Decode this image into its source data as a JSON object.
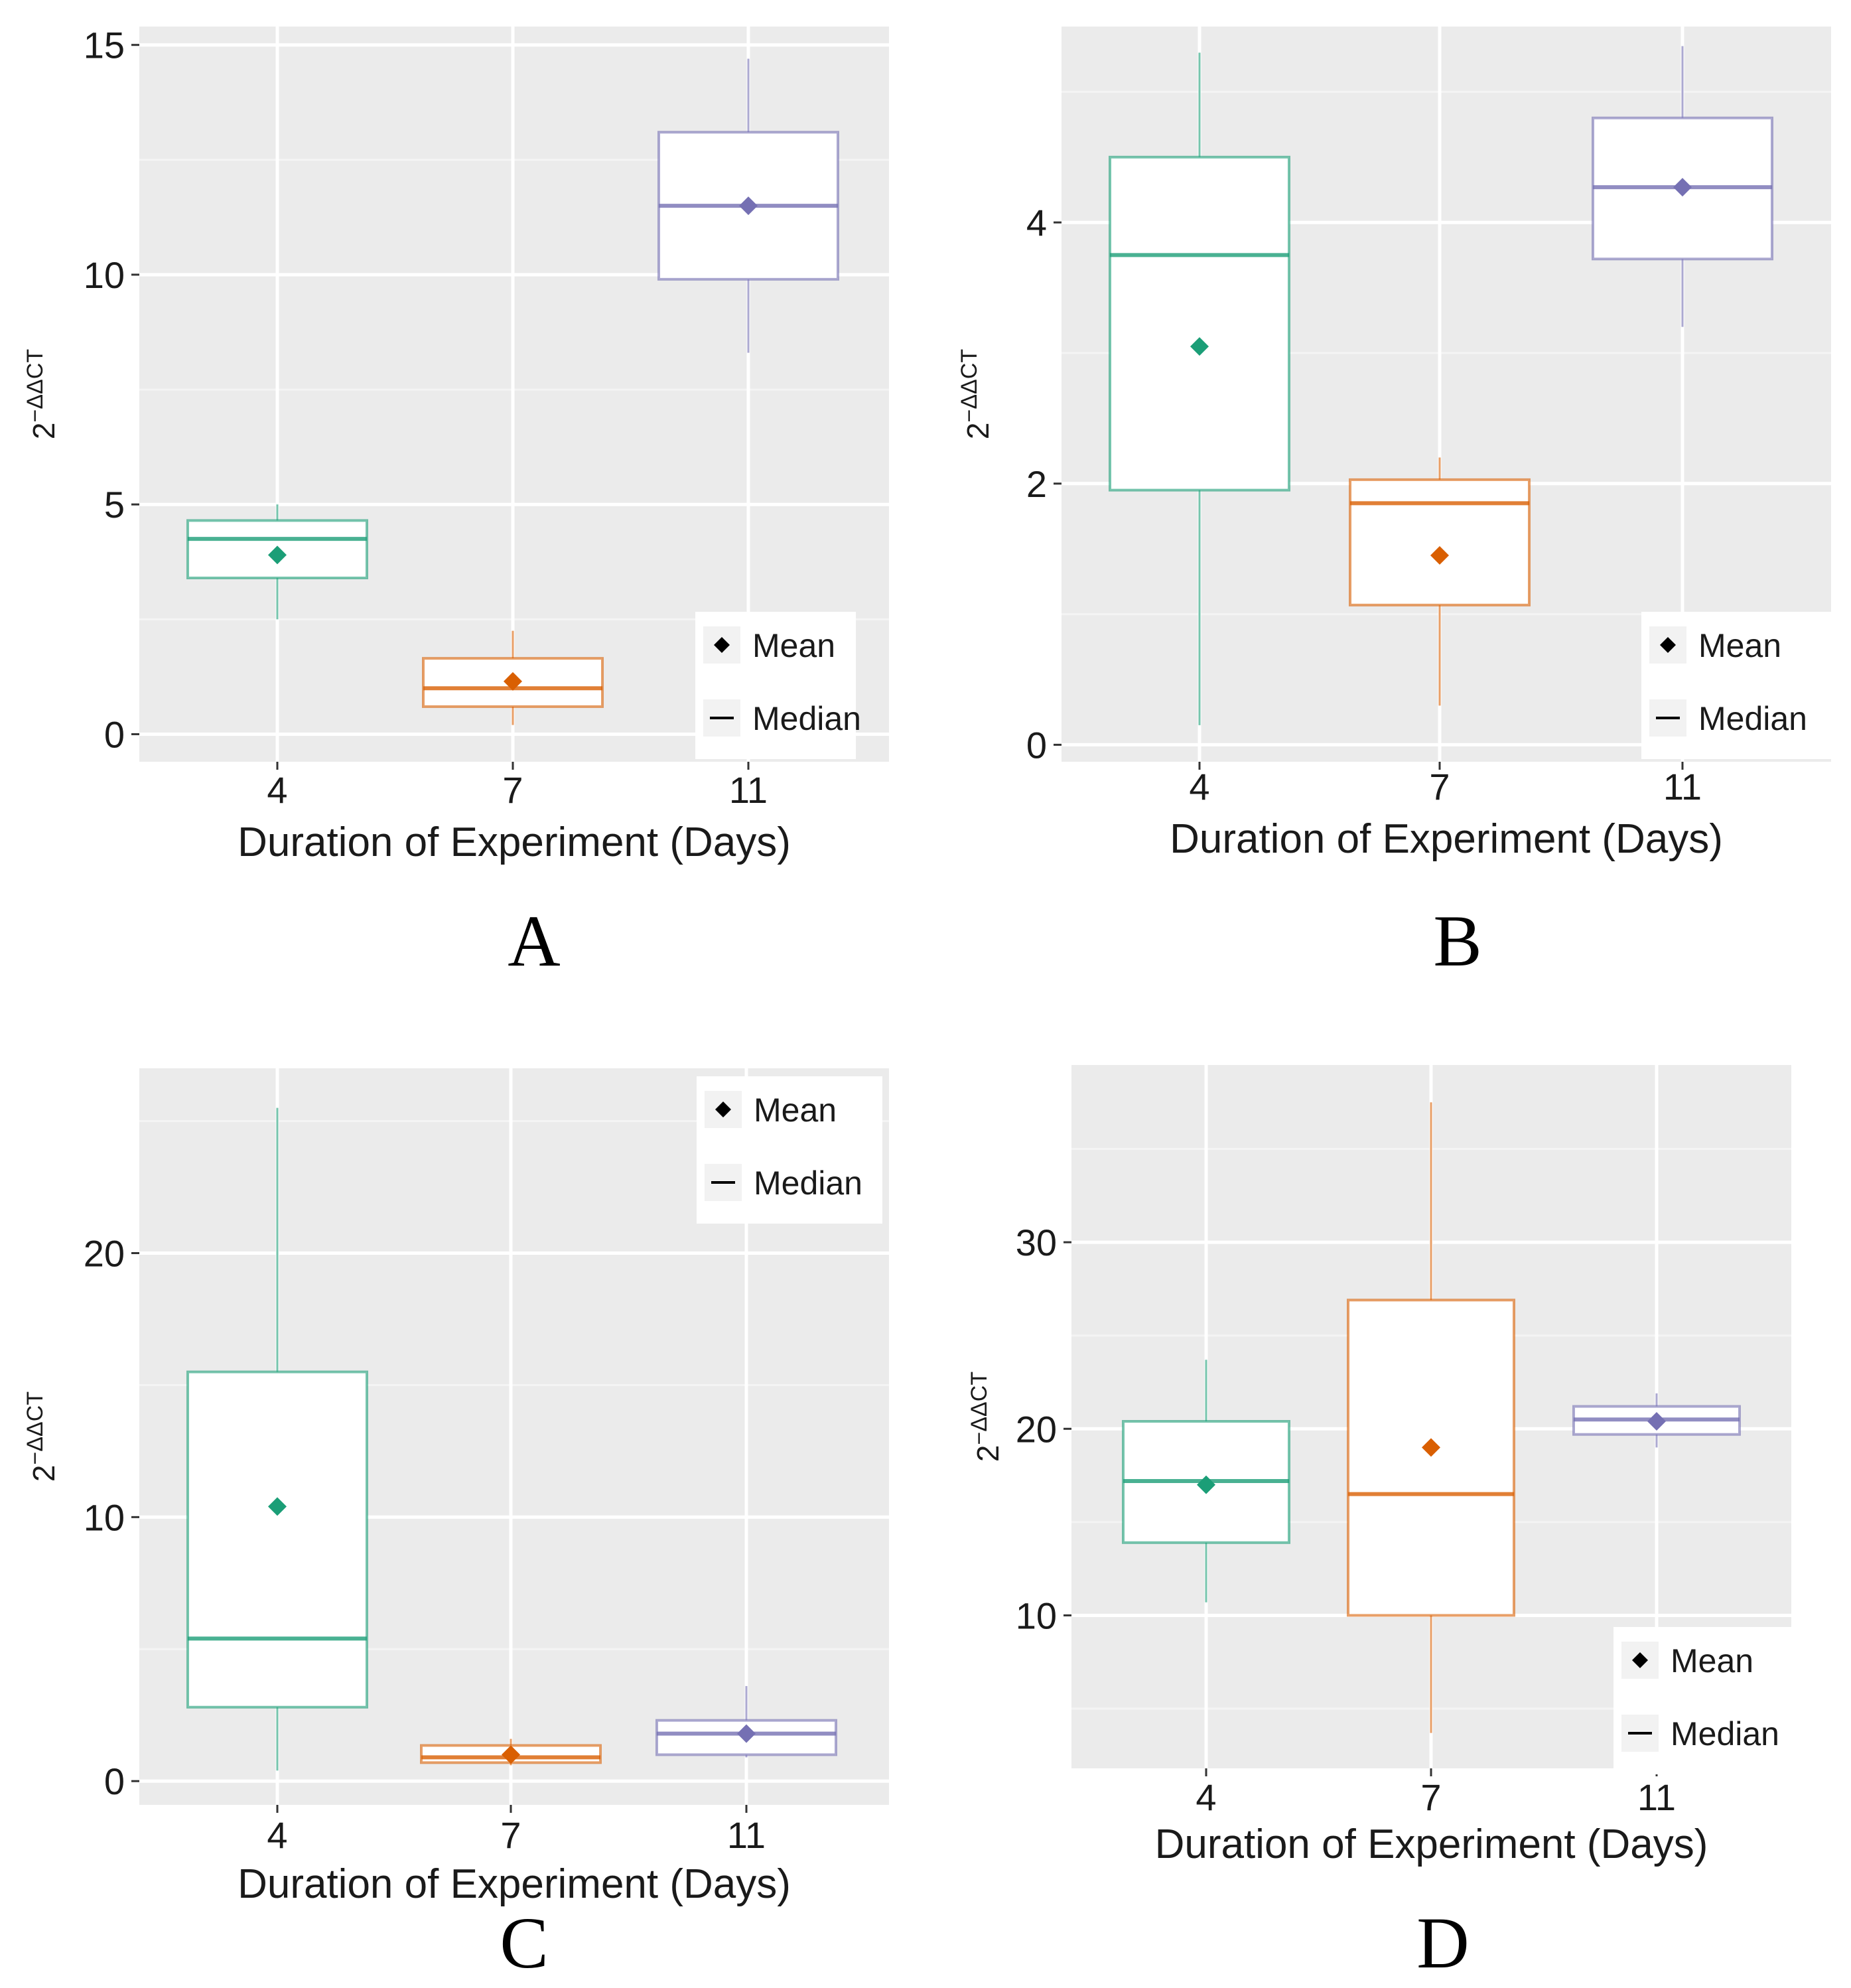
{
  "colors": {
    "panel_bg": "#ebebeb",
    "grid_major": "#ffffff",
    "grid_minor": "#f4f4f4",
    "day4": "#1b9e77",
    "day7": "#d95f02",
    "day11": "#7570b3",
    "text": "#1a1a1a"
  },
  "chart_data": [
    {
      "panel": "A",
      "type": "box",
      "xlabel": "Duration of Experiment (Days)",
      "ylabel_base": "2",
      "ylabel_exp": "−ΔΔCT",
      "ylim": [
        -0.6,
        15.4
      ],
      "yticks": [
        0,
        5,
        10,
        15
      ],
      "categories": [
        "4",
        "7",
        "11"
      ],
      "legend": {
        "position": "bottom-right",
        "mean_label": "Mean",
        "median_label": "Median"
      },
      "boxes": [
        {
          "category": "4",
          "whisker_low": 2.5,
          "q1": 3.4,
          "median": 4.25,
          "q3": 4.65,
          "whisker_high": 5.0,
          "mean": 3.9
        },
        {
          "category": "7",
          "whisker_low": 0.2,
          "q1": 0.6,
          "median": 1.0,
          "q3": 1.65,
          "whisker_high": 2.25,
          "mean": 1.15
        },
        {
          "category": "11",
          "whisker_low": 8.3,
          "q1": 9.9,
          "median": 11.5,
          "q3": 13.1,
          "whisker_high": 14.7,
          "mean": 11.5
        }
      ]
    },
    {
      "panel": "B",
      "type": "box",
      "xlabel": "Duration of Experiment (Days)",
      "ylabel_base": "2",
      "ylabel_exp": "−ΔΔCT",
      "ylim": [
        -0.13,
        5.5
      ],
      "yticks": [
        0,
        2,
        4
      ],
      "categories": [
        "4",
        "7",
        "11"
      ],
      "legend": {
        "position": "bottom-right",
        "mean_label": "Mean",
        "median_label": "Median"
      },
      "boxes": [
        {
          "category": "4",
          "whisker_low": 0.15,
          "q1": 1.95,
          "median": 3.75,
          "q3": 4.5,
          "whisker_high": 5.3,
          "mean": 3.05
        },
        {
          "category": "7",
          "whisker_low": 0.3,
          "q1": 1.07,
          "median": 1.85,
          "q3": 2.03,
          "whisker_high": 2.2,
          "mean": 1.45
        },
        {
          "category": "11",
          "whisker_low": 3.2,
          "q1": 3.72,
          "median": 4.27,
          "q3": 4.8,
          "whisker_high": 5.35,
          "mean": 4.27
        }
      ]
    },
    {
      "panel": "C",
      "type": "box",
      "xlabel": "Duration of Experiment (Days)",
      "ylabel_base": "2",
      "ylabel_exp": "−ΔΔCT",
      "ylim": [
        -0.9,
        27.0
      ],
      "yticks": [
        0,
        10,
        20
      ],
      "categories": [
        "4",
        "7",
        "11"
      ],
      "legend": {
        "position": "top-right",
        "mean_label": "Mean",
        "median_label": "Median"
      },
      "boxes": [
        {
          "category": "4",
          "whisker_low": 0.4,
          "q1": 2.8,
          "median": 5.4,
          "q3": 15.5,
          "whisker_high": 25.5,
          "mean": 10.4
        },
        {
          "category": "7",
          "whisker_low": 0.6,
          "q1": 0.7,
          "median": 0.9,
          "q3": 1.35,
          "whisker_high": 1.6,
          "mean": 1.0
        },
        {
          "category": "11",
          "whisker_low": 0.9,
          "q1": 1.0,
          "median": 1.8,
          "q3": 2.3,
          "whisker_high": 3.6,
          "mean": 1.8
        }
      ]
    },
    {
      "panel": "D",
      "type": "box",
      "xlabel": "Duration of Experiment (Days)",
      "ylabel_base": "2",
      "ylabel_exp": "−ΔΔCT",
      "ylim": [
        1.8,
        39.5
      ],
      "yticks": [
        10,
        20,
        30
      ],
      "categories": [
        "4",
        "7",
        "11"
      ],
      "legend": {
        "position": "bottom-right",
        "mean_label": "Mean",
        "median_label": "Median"
      },
      "boxes": [
        {
          "category": "4",
          "whisker_low": 10.7,
          "q1": 13.9,
          "median": 17.2,
          "q3": 20.4,
          "whisker_high": 23.7,
          "mean": 17.0
        },
        {
          "category": "7",
          "whisker_low": 3.7,
          "q1": 10.0,
          "median": 16.5,
          "q3": 26.9,
          "whisker_high": 37.5,
          "mean": 19.0
        },
        {
          "category": "11",
          "whisker_low": 19.0,
          "q1": 19.7,
          "median": 20.5,
          "q3": 21.2,
          "whisker_high": 21.9,
          "mean": 20.4
        }
      ]
    }
  ]
}
